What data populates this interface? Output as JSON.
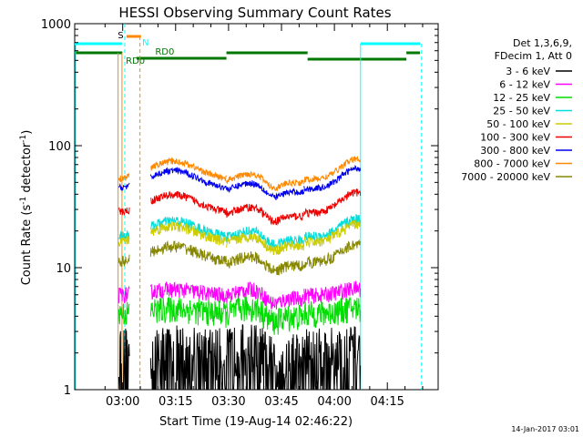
{
  "chart_data": {
    "type": "line",
    "title": "HESSI Observing Summary Count Rates",
    "xlabel": "Start Time (19-Aug-14 02:46:22)",
    "ylabel_main": "Count Rate (s",
    "ylabel_sup1": "-1",
    "ylabel_mid": " detector",
    "ylabel_sup2": "-1",
    "ylabel_end": ")",
    "yscale": "log",
    "ylim": [
      1,
      1000
    ],
    "xlim_minutes": [
      0,
      103
    ],
    "x_ticks": [
      {
        "label": "03:00",
        "minute": 13.6
      },
      {
        "label": "03:15",
        "minute": 28.6
      },
      {
        "label": "03:30",
        "minute": 43.6
      },
      {
        "label": "03:45",
        "minute": 58.6
      },
      {
        "label": "04:00",
        "minute": 73.6
      },
      {
        "label": "04:15",
        "minute": 88.6
      }
    ],
    "y_ticks": [
      {
        "label": "1",
        "value": 1
      },
      {
        "label": "10",
        "value": 10
      },
      {
        "label": "100",
        "value": 100
      },
      {
        "label": "1000",
        "value": 1000
      }
    ],
    "legend_header": [
      "Det 1,3,6,9,",
      "FDecim 1, Att 0"
    ],
    "series": [
      {
        "name": "3 - 6 keV",
        "color": "#000000"
      },
      {
        "name": "6 - 12 keV",
        "color": "#ff00ff"
      },
      {
        "name": "12 - 25 keV",
        "color": "#00dd00"
      },
      {
        "name": "25 - 50 keV",
        "color": "#00dddd"
      },
      {
        "name": "50 - 100 keV",
        "color": "#cccc00"
      },
      {
        "name": "100 - 300 keV",
        "color": "#ee0000"
      },
      {
        "name": "300 - 800 keV",
        "color": "#0000ee"
      },
      {
        "name": "800 - 7000 keV",
        "color": "#ff8800"
      },
      {
        "name": "7000 - 20000 keV",
        "color": "#888800"
      }
    ],
    "annotations": {
      "s_label": "S",
      "n_label": "N",
      "rd0_label_top": "RD0",
      "rd0_label_bottom": "RD0"
    },
    "footer_date": "14-Jan-2017 03:01"
  }
}
